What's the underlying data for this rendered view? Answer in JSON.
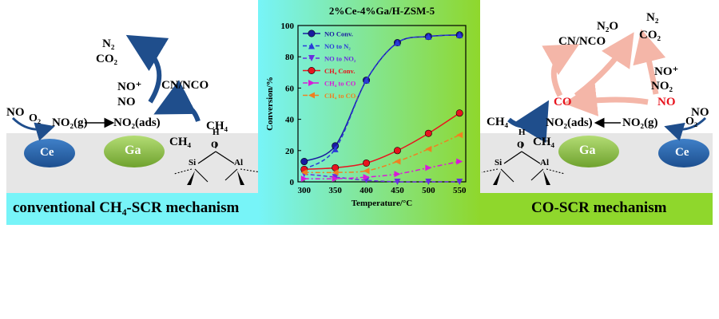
{
  "left": {
    "caption": "conventional CH₄-SCR mechanism",
    "labels": {
      "no": "NO",
      "o2": "O₂",
      "no2g": "NO₂(g)",
      "no2ads": "NO₂(ads)",
      "n2": "N₂",
      "co2": "CO₂",
      "noplus": "NO⁺",
      "no_ads": "NO",
      "cnnco": "CN/NCO",
      "ch4_a": "CH₄",
      "ch4_b": "CH₄",
      "ce": "Ce",
      "ga": "Ga",
      "h": "H",
      "o": "O",
      "si": "Si",
      "al": "Al"
    }
  },
  "right": {
    "caption": "CO-SCR mechanism",
    "labels": {
      "n2o": "N₂O",
      "cnnco": "CN/NCO",
      "n2": "N₂",
      "co2": "CO₂",
      "noplus": "NO⁺",
      "no2": "NO₂",
      "no_red": "NO",
      "co": "CO",
      "ch4_a": "CH₄",
      "ch4_b": "CH₄",
      "no2ads": "NO₂(ads)",
      "no2g": "NO₂(g)",
      "no": "NO",
      "o2": "O₂",
      "ga": "Ga",
      "ce": "Ce",
      "h": "H",
      "o": "O",
      "si": "Si",
      "al": "Al"
    }
  },
  "colors": {
    "cyan": "#77f4f8",
    "green": "#8fd72c",
    "catalyst_band": "#e6e6e6",
    "ce_blue": "#2f6db3",
    "ga_green": "#8fc24a",
    "arrow_blue": "#1f4e8c",
    "arrow_pink": "#f4b6a8",
    "red_text": "#e8141e"
  },
  "chart_data": {
    "type": "line",
    "title": "2%Ce-4%Ga/H-ZSM-5",
    "xlabel": "Temperature/°C",
    "ylabel": "Conversion/%",
    "xlim": [
      290,
      560
    ],
    "ylim": [
      0,
      100
    ],
    "x_ticks": [
      300,
      350,
      400,
      450,
      500,
      550
    ],
    "y_ticks": [
      0,
      20,
      40,
      60,
      80,
      100
    ],
    "x": [
      300,
      350,
      400,
      450,
      500,
      550
    ],
    "legend_position": "top-left",
    "series": [
      {
        "name": "NO Conv.",
        "color": "#1a1aa0",
        "marker": "circle",
        "style": "solid",
        "values": [
          13,
          23,
          65,
          89,
          93,
          94
        ]
      },
      {
        "name": "NO to N₂",
        "color": "#2a3bd8",
        "marker": "triangle-up",
        "style": "dashed",
        "values": [
          8,
          21,
          65,
          89,
          93,
          94
        ]
      },
      {
        "name": "NO to NO₂",
        "color": "#6a2ee0",
        "marker": "triangle-down",
        "style": "dashed",
        "values": [
          5,
          3,
          1,
          0,
          0,
          0
        ]
      },
      {
        "name": "CH₄ Conv.",
        "color": "#e8141e",
        "marker": "circle",
        "style": "solid",
        "values": [
          8,
          9,
          12,
          20,
          31,
          44
        ]
      },
      {
        "name": "CH₄ to CO",
        "color": "#d81ad8",
        "marker": "triangle-right",
        "style": "dashdot",
        "values": [
          2,
          2,
          3,
          5,
          9,
          13
        ]
      },
      {
        "name": "CH₄ to CO₂",
        "color": "#f08020",
        "marker": "triangle-left",
        "style": "dashdot",
        "values": [
          6,
          6,
          7,
          13,
          21,
          30
        ]
      }
    ]
  }
}
